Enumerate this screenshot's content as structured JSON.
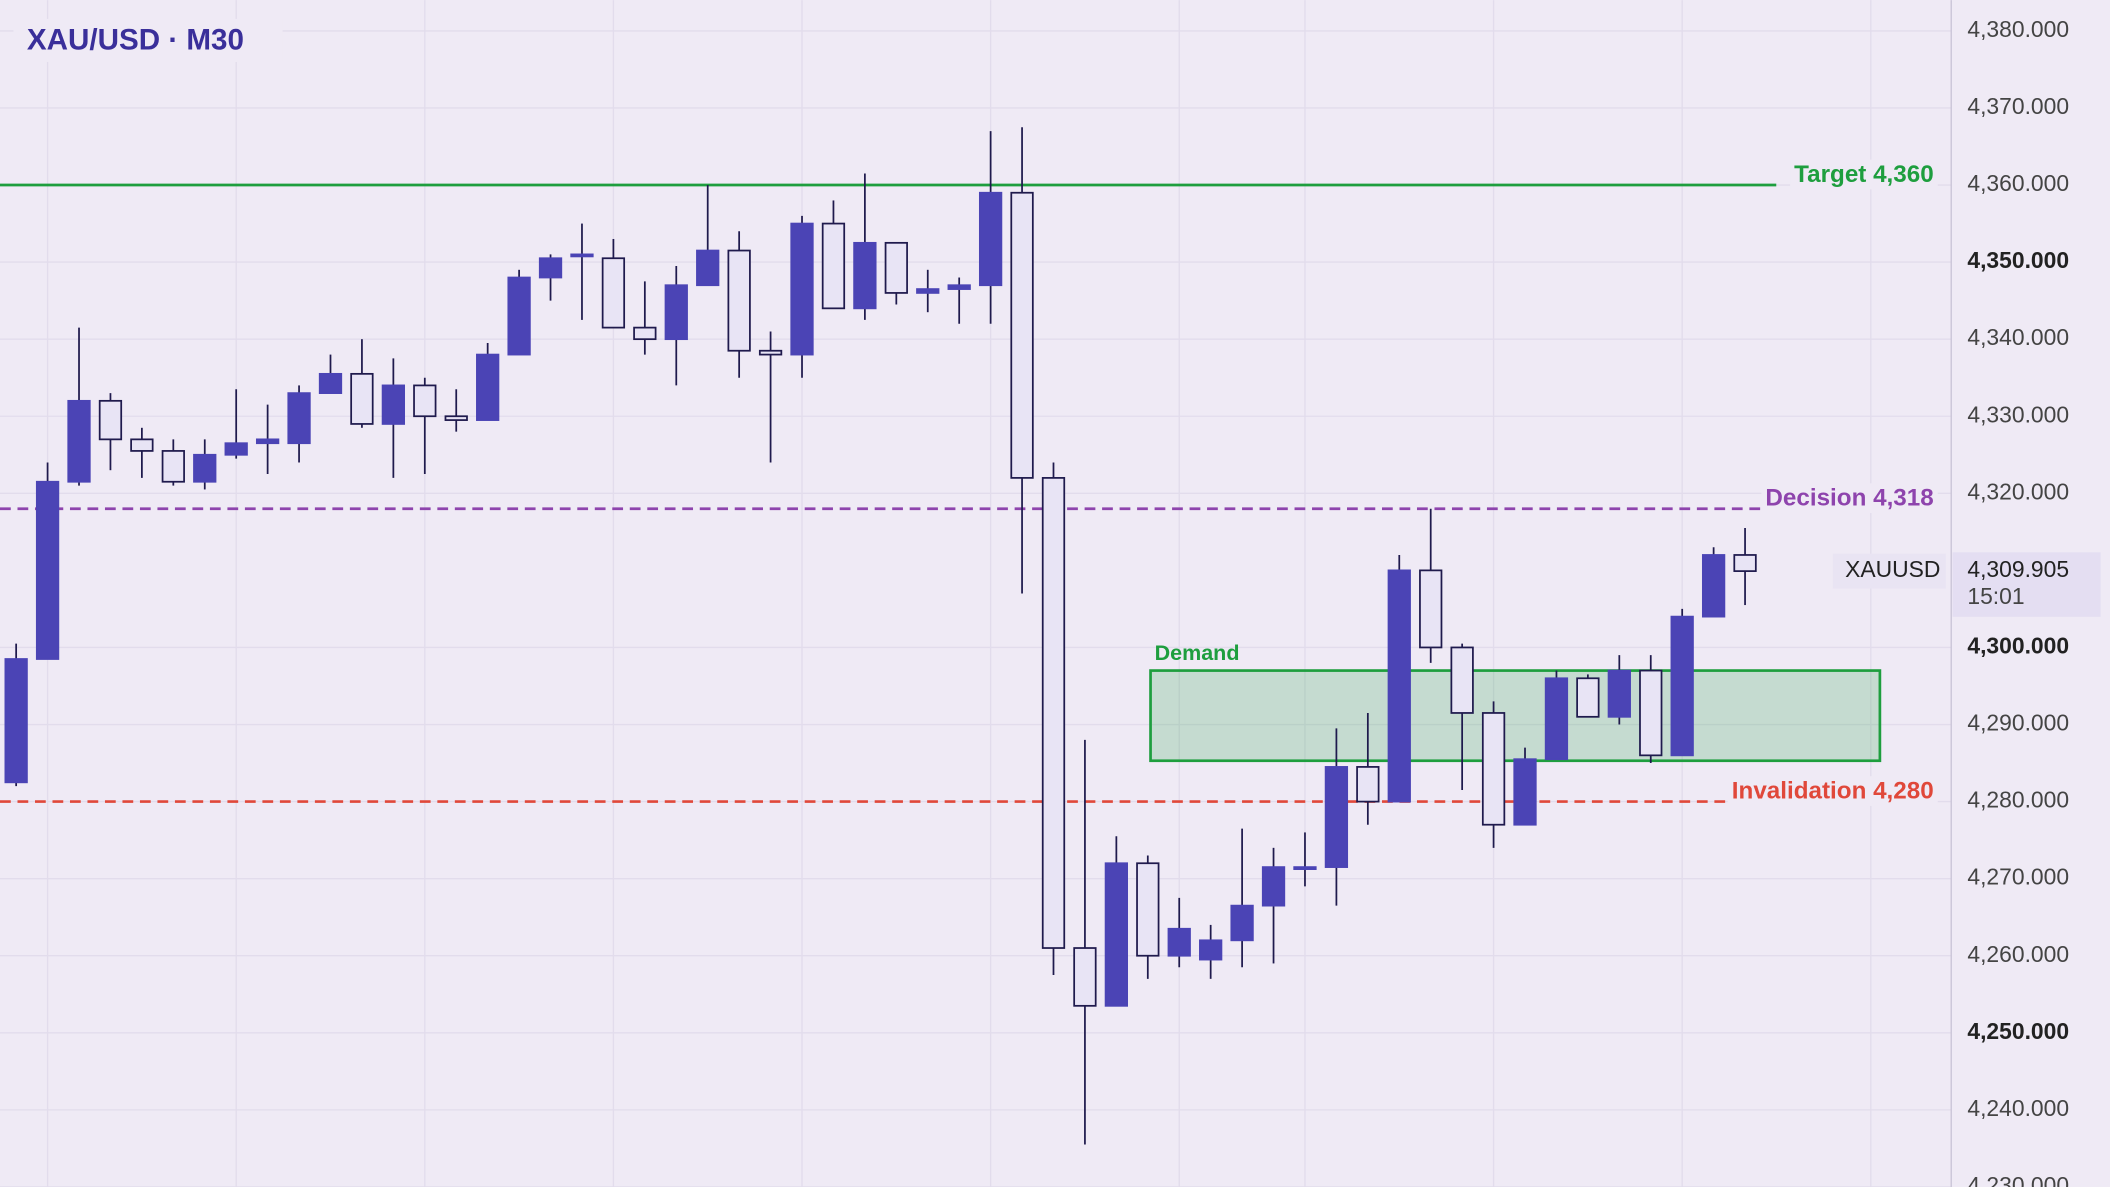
{
  "chart_data": {
    "type": "candlestick",
    "title": "XAU/USD · M30",
    "ylim": [
      4230,
      4384
    ],
    "yticks": [
      {
        "value": 4380,
        "label": "4,380.000"
      },
      {
        "value": 4370,
        "label": "4,370.000"
      },
      {
        "value": 4360,
        "label": "4,360.000"
      },
      {
        "value": 4350,
        "label": "4,350.000"
      },
      {
        "value": 4340,
        "label": "4,340.000"
      },
      {
        "value": 4330,
        "label": "4,330.000"
      },
      {
        "value": 4320,
        "label": "4,320.000"
      },
      {
        "value": 4300,
        "label": "4,300.000"
      },
      {
        "value": 4290,
        "label": "4,290.000"
      },
      {
        "value": 4280,
        "label": "4,280.000"
      },
      {
        "value": 4270,
        "label": "4,270.000"
      },
      {
        "value": 4260,
        "label": "4,260.000"
      },
      {
        "value": 4250,
        "label": "4,250.000"
      },
      {
        "value": 4240,
        "label": "4,240.000"
      },
      {
        "value": 4230,
        "label": "4,230.000"
      }
    ],
    "grid": true,
    "up_color": "#4b44b5",
    "down_color": "#e8e4f5",
    "wick_color": "#1f1a4d",
    "series": [
      {
        "name": "XAUUSD",
        "open": [
          4282.5,
          4298.5,
          4321.5,
          4332,
          4327,
          4325.5,
          4321.5,
          4325,
          4326.5,
          4326.5,
          4333,
          4335.5,
          4329,
          4334,
          4330,
          4329.5,
          4338,
          4348,
          4351,
          4350.5,
          4341.5,
          4340,
          4347,
          4351.5,
          4338.5,
          4338,
          4355,
          4344,
          4352.5,
          4346,
          4346.5,
          4347,
          4359,
          4322,
          4261,
          4253.5,
          4272,
          4260,
          4259.5,
          4262,
          4266.5,
          4271.5,
          4271.5,
          4284.5,
          4280,
          4310,
          4300,
          4291.5,
          4277,
          4285.5,
          4296,
          4291,
          4297,
          4286,
          4304,
          4312
        ],
        "high": [
          4300.5,
          4324,
          4341.5,
          4333,
          4328.5,
          4327,
          4327,
          4333.5,
          4331.5,
          4334,
          4338,
          4340,
          4337.5,
          4335,
          4333.5,
          4339.5,
          4349,
          4351,
          4355,
          4353,
          4347.5,
          4349.5,
          4360,
          4354,
          4341,
          4356,
          4358,
          4361.5,
          4352.5,
          4349,
          4348,
          4367,
          4367.5,
          4324,
          4288,
          4275.5,
          4273,
          4267.5,
          4264,
          4276.5,
          4274,
          4276,
          4289.5,
          4291.5,
          4312,
          4318,
          4300.5,
          4293,
          4287,
          4297,
          4296.5,
          4299,
          4299,
          4305,
          4313,
          4315.5
        ],
        "low": [
          4282,
          4298.5,
          4321,
          4323,
          4322,
          4321,
          4320.5,
          4324.5,
          4322.5,
          4324,
          4333,
          4328.5,
          4322,
          4322.5,
          4328,
          4329.5,
          4338,
          4345,
          4342.5,
          4341.5,
          4338,
          4334,
          4347,
          4335,
          4324,
          4335,
          4344,
          4342.5,
          4344.5,
          4343.5,
          4342,
          4342,
          4307,
          4257.5,
          4235.5,
          4253.5,
          4257,
          4258.5,
          4257,
          4258.5,
          4259,
          4269,
          4266.5,
          4277,
          4280,
          4298,
          4281.5,
          4274,
          4277,
          4285.5,
          4291,
          4290,
          4285,
          4286,
          4304,
          4305.5
        ],
        "close": [
          4298.5,
          4321.5,
          4332,
          4327,
          4325.5,
          4321.5,
          4325,
          4326.5,
          4327,
          4333,
          4335.5,
          4329,
          4334,
          4330,
          4329.5,
          4338,
          4348,
          4350.5,
          4351,
          4341.5,
          4340,
          4347,
          4351.5,
          4338.5,
          4338,
          4355,
          4344,
          4352.5,
          4346,
          4346.5,
          4347,
          4359,
          4322,
          4261,
          4253.5,
          4272,
          4260,
          4263.5,
          4262,
          4266.5,
          4271.5,
          4271.5,
          4284.5,
          4280,
          4310,
          4300,
          4291.5,
          4277,
          4285.5,
          4296,
          4291,
          4297,
          4286,
          4304,
          4312,
          4309.905
        ]
      }
    ],
    "levels": [
      {
        "label": "Target 4,360",
        "value": 4360,
        "color": "#1e9e3e",
        "dashed": false
      },
      {
        "label": "Decision 4,318",
        "value": 4318,
        "color": "#8e44ad",
        "dashed": true
      },
      {
        "label": "Invalidation 4,280",
        "value": 4280,
        "color": "#e0483a",
        "dashed": true
      }
    ],
    "zone": {
      "label": "Demand",
      "low": 4285.3,
      "high": 4297,
      "color": "#1e9e3e"
    },
    "last_price": {
      "symbol": "XAUUSD",
      "value": 4309.905,
      "label": "4,309.905",
      "countdown": "15:01"
    }
  }
}
